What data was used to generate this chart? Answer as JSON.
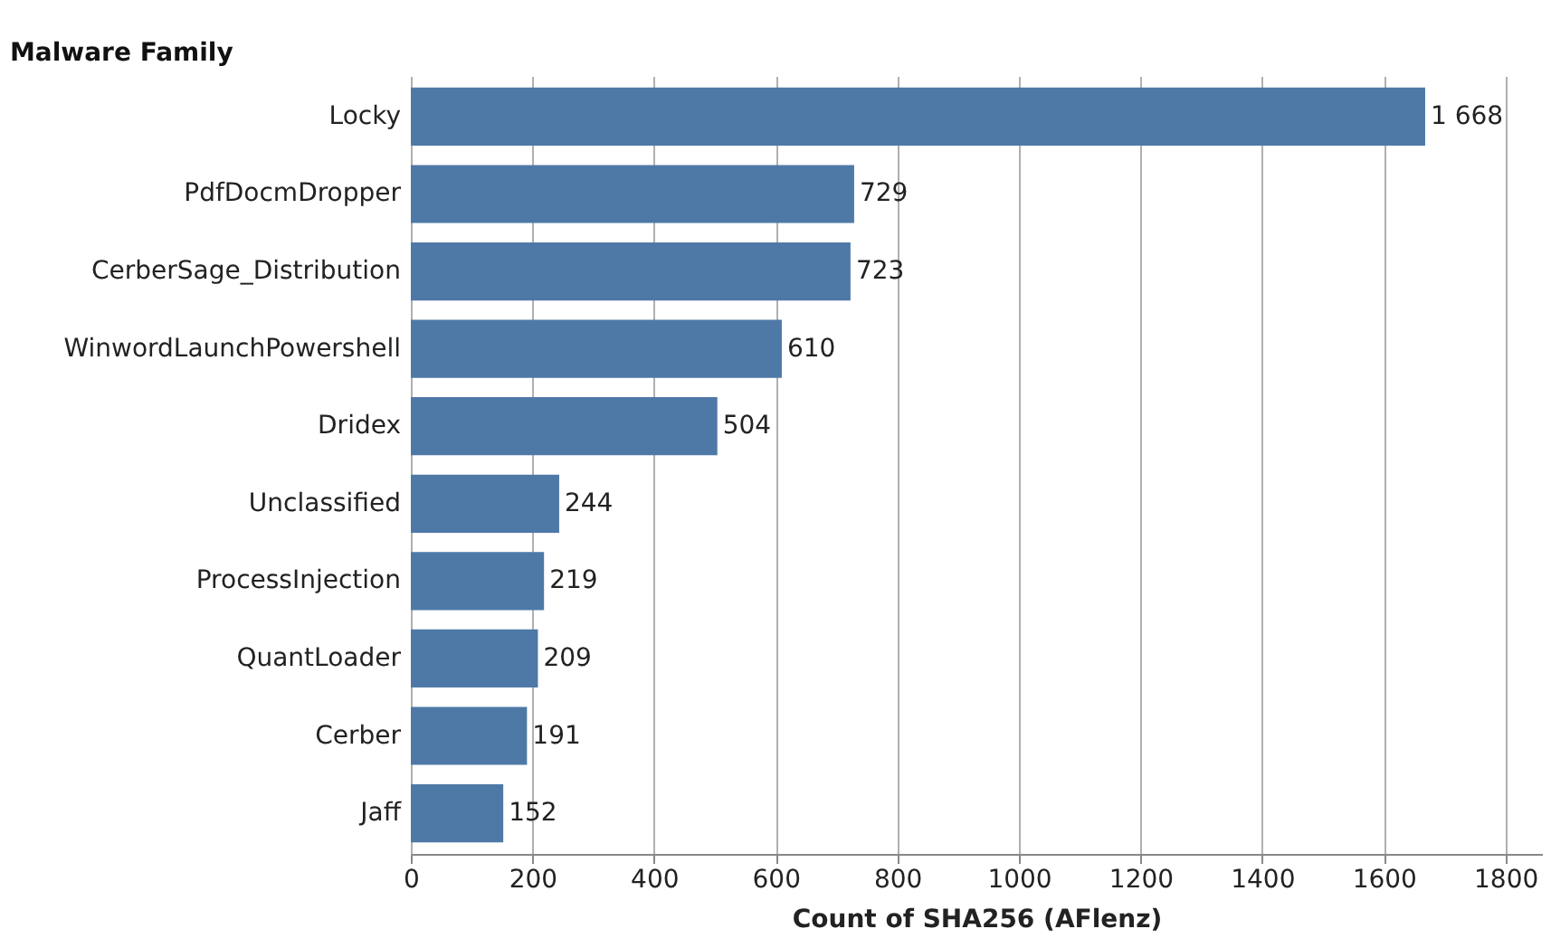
{
  "chart_data": {
    "type": "bar",
    "orientation": "horizontal",
    "ylabel": "Malware Family",
    "xlabel": "Count of SHA256 (AFlenz)",
    "categories": [
      "Locky",
      "PdfDocmDropper",
      "CerberSage_Distribution",
      "WinwordLaunchPowershell",
      "Dridex",
      "Unclassified",
      "ProcessInjection",
      "QuantLoader",
      "Cerber",
      "Jaff"
    ],
    "values": [
      1668,
      729,
      723,
      610,
      504,
      244,
      219,
      209,
      191,
      152
    ],
    "value_labels": [
      "1 668",
      "729",
      "723",
      "610",
      "504",
      "244",
      "219",
      "209",
      "191",
      "152"
    ],
    "color": "#4e79a7",
    "xlim": [
      0,
      1860
    ],
    "xticks": [
      0,
      200,
      400,
      600,
      800,
      1000,
      1200,
      1400,
      1600,
      1800
    ],
    "grid": "x"
  }
}
